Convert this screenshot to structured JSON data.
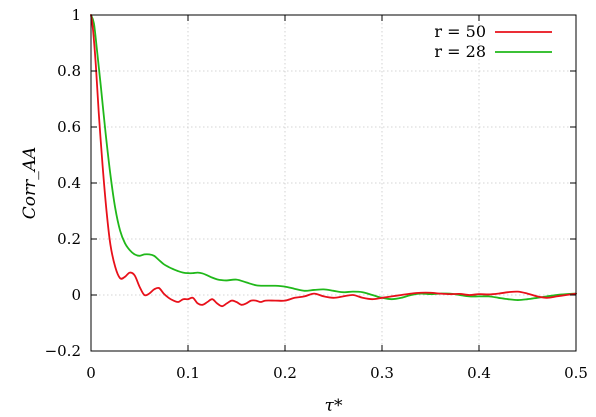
{
  "chart_data": {
    "type": "line",
    "title": "",
    "xlabel": "τ*",
    "ylabel": "Corr_AA",
    "xlim": [
      0,
      0.5
    ],
    "ylim": [
      -0.2,
      1.0
    ],
    "xticks": [
      0,
      0.1,
      0.2,
      0.3,
      0.4,
      0.5
    ],
    "xtick_labels": [
      "0",
      "0.1",
      "0.2",
      "0.3",
      "0.4",
      "0.5"
    ],
    "yticks": [
      -0.2,
      0,
      0.2,
      0.4,
      0.6,
      0.8,
      1.0
    ],
    "ytick_labels": [
      "−0.2",
      "0",
      "0.2",
      "0.4",
      "0.6",
      "0.8",
      "1"
    ],
    "grid": true,
    "legend_position": "top-right",
    "series": [
      {
        "name": "r = 50",
        "color": "#e8101a",
        "x": [
          0,
          0.002,
          0.005,
          0.008,
          0.012,
          0.016,
          0.02,
          0.025,
          0.03,
          0.035,
          0.04,
          0.045,
          0.05,
          0.055,
          0.06,
          0.065,
          0.07,
          0.075,
          0.08,
          0.085,
          0.09,
          0.095,
          0.1,
          0.105,
          0.11,
          0.115,
          0.12,
          0.125,
          0.13,
          0.135,
          0.14,
          0.145,
          0.15,
          0.155,
          0.16,
          0.165,
          0.17,
          0.175,
          0.18,
          0.19,
          0.2,
          0.21,
          0.22,
          0.23,
          0.24,
          0.25,
          0.26,
          0.27,
          0.28,
          0.29,
          0.3,
          0.31,
          0.32,
          0.33,
          0.34,
          0.35,
          0.36,
          0.37,
          0.38,
          0.39,
          0.4,
          0.41,
          0.42,
          0.43,
          0.44,
          0.45,
          0.46,
          0.47,
          0.48,
          0.49,
          0.5
        ],
        "y": [
          1.0,
          0.95,
          0.82,
          0.65,
          0.46,
          0.3,
          0.18,
          0.1,
          0.06,
          0.065,
          0.08,
          0.07,
          0.03,
          0.0,
          0.005,
          0.02,
          0.025,
          0.005,
          -0.01,
          -0.02,
          -0.025,
          -0.015,
          -0.015,
          -0.01,
          -0.03,
          -0.035,
          -0.025,
          -0.015,
          -0.03,
          -0.04,
          -0.03,
          -0.02,
          -0.025,
          -0.035,
          -0.03,
          -0.02,
          -0.02,
          -0.025,
          -0.02,
          -0.02,
          -0.02,
          -0.01,
          -0.005,
          0.005,
          -0.005,
          -0.01,
          -0.005,
          0.0,
          -0.01,
          -0.015,
          -0.01,
          -0.005,
          0.0,
          0.005,
          0.008,
          0.008,
          0.005,
          0.003,
          0.004,
          0.0,
          0.003,
          0.002,
          0.005,
          0.01,
          0.012,
          0.005,
          -0.005,
          -0.01,
          -0.005,
          0.0,
          0.005
        ]
      },
      {
        "name": "r = 28",
        "color": "#20b81a",
        "x": [
          0,
          0.003,
          0.006,
          0.01,
          0.015,
          0.02,
          0.025,
          0.03,
          0.035,
          0.04,
          0.045,
          0.05,
          0.055,
          0.06,
          0.065,
          0.07,
          0.075,
          0.08,
          0.085,
          0.09,
          0.095,
          0.1,
          0.105,
          0.11,
          0.115,
          0.12,
          0.125,
          0.13,
          0.135,
          0.14,
          0.15,
          0.16,
          0.17,
          0.18,
          0.19,
          0.2,
          0.21,
          0.22,
          0.23,
          0.24,
          0.25,
          0.26,
          0.27,
          0.28,
          0.29,
          0.3,
          0.31,
          0.32,
          0.33,
          0.34,
          0.35,
          0.36,
          0.37,
          0.38,
          0.39,
          0.4,
          0.41,
          0.42,
          0.43,
          0.44,
          0.45,
          0.46,
          0.47,
          0.48,
          0.49,
          0.5
        ],
        "y": [
          1.0,
          0.97,
          0.88,
          0.75,
          0.58,
          0.43,
          0.31,
          0.23,
          0.185,
          0.16,
          0.145,
          0.14,
          0.145,
          0.145,
          0.14,
          0.125,
          0.11,
          0.1,
          0.092,
          0.085,
          0.08,
          0.078,
          0.078,
          0.08,
          0.077,
          0.07,
          0.062,
          0.056,
          0.053,
          0.052,
          0.055,
          0.045,
          0.035,
          0.033,
          0.033,
          0.03,
          0.022,
          0.015,
          0.018,
          0.02,
          0.015,
          0.01,
          0.012,
          0.01,
          0.0,
          -0.01,
          -0.015,
          -0.01,
          0.0,
          0.005,
          0.003,
          0.005,
          0.005,
          0.0,
          -0.005,
          -0.005,
          -0.005,
          -0.01,
          -0.015,
          -0.018,
          -0.015,
          -0.01,
          -0.005,
          0.0,
          0.003,
          0.005
        ]
      }
    ]
  }
}
